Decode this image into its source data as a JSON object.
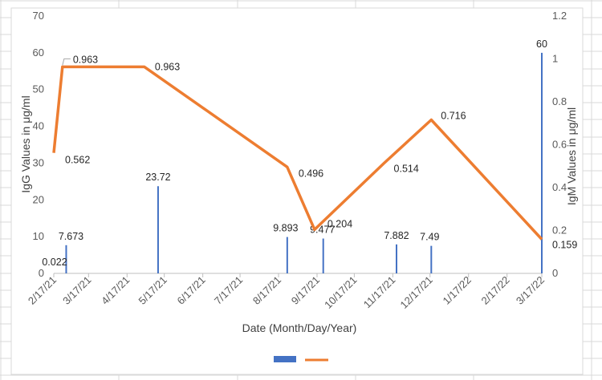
{
  "chart_data": {
    "type": "bar+line",
    "x_dates": [
      "2/17/21",
      "3/17/21",
      "4/17/21",
      "5/17/21",
      "6/17/21",
      "7/17/21",
      "8/17/21",
      "9/17/21",
      "10/17/21",
      "11/17/21",
      "12/17/21",
      "1/17/22",
      "2/17/22",
      "3/17/22"
    ],
    "xlabel": "Date (Month/Day/Year)",
    "ylabel": "IgG Values in μg/ml",
    "y2label": "IgM Values in μg/ml",
    "y_ticks": [
      "0",
      "10",
      "20",
      "30",
      "40",
      "50",
      "60",
      "70"
    ],
    "y2_ticks": [
      "0",
      "0.2",
      "0.4",
      "0.6",
      "0.8",
      "1",
      "1.2"
    ],
    "ylim": [
      0,
      70
    ],
    "y2lim": [
      0,
      1.2
    ],
    "bar_color": "#4472C4",
    "line_color": "#ED7D31",
    "series": [
      {
        "axis": "primary",
        "type": "bar",
        "points": [
          {
            "date": "2/27/21",
            "value": 7.673,
            "label": "7.673"
          },
          {
            "date": "5/12/21",
            "value": 23.72,
            "label": "23.72"
          },
          {
            "date": "8/24/21",
            "value": 9.893,
            "label": "9.893"
          },
          {
            "date": "9/22/21",
            "value": 9.477,
            "label": "9.477"
          },
          {
            "date": "11/20/21",
            "value": 7.882,
            "label": "7.882"
          },
          {
            "date": "12/18/21",
            "value": 7.49,
            "label": "7.49"
          },
          {
            "date": "3/17/22",
            "value": 60,
            "label": "60"
          }
        ]
      },
      {
        "axis": "secondary",
        "type": "line",
        "points": [
          {
            "date": "2/17/21",
            "value": 0.562,
            "label": "0.562"
          },
          {
            "date": "2/24/21",
            "value": 0.963,
            "label": "0.963"
          },
          {
            "date": "5/1/21",
            "value": 0.963,
            "label": "0.963"
          },
          {
            "date": "8/24/21",
            "value": 0.496,
            "label": "0.496"
          },
          {
            "date": "9/15/21",
            "value": 0.204,
            "label": "0.204"
          },
          {
            "date": "11/10/21",
            "value": 0.514,
            "label": "0.514"
          },
          {
            "date": "12/18/21",
            "value": 0.716,
            "label": "0.716"
          },
          {
            "date": "3/17/22",
            "value": 0.159,
            "label": "0.159"
          }
        ]
      }
    ],
    "extra_labels": [
      "0.022"
    ],
    "legend_position": "bottom",
    "grid": false
  }
}
